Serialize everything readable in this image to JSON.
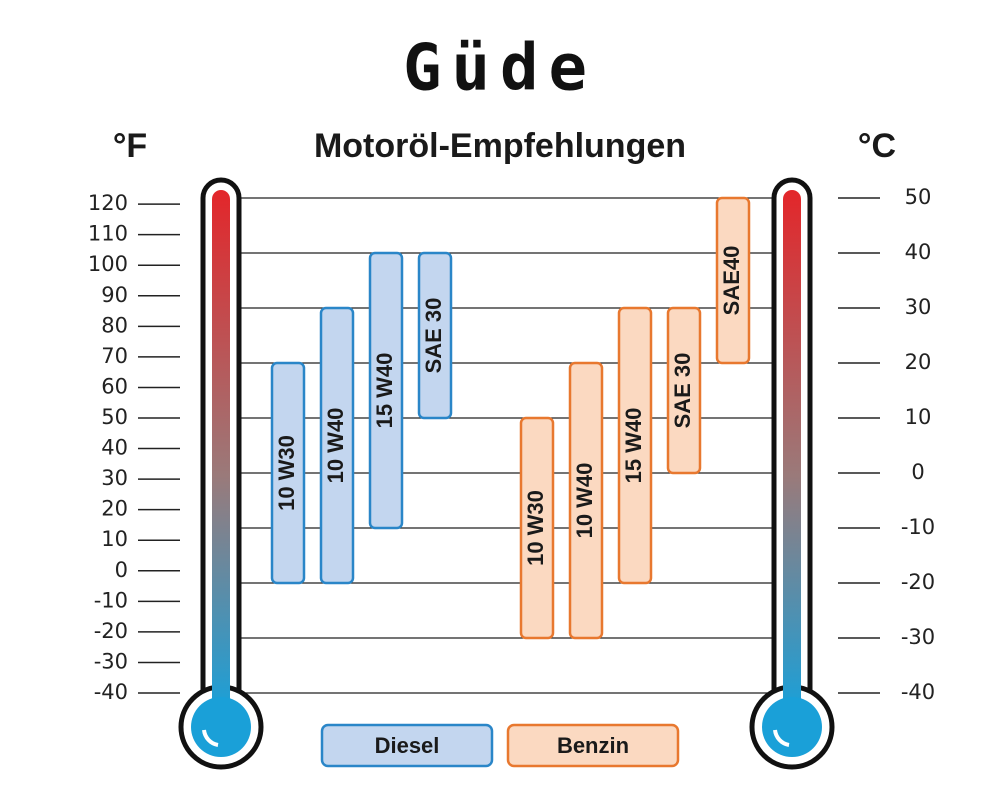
{
  "chart_data": {
    "type": "range-bar",
    "brand": "Güde",
    "title": "Motoröl-Empfehlungen",
    "left_unit": "°F",
    "right_unit": "°C",
    "ylim": [
      -40,
      50
    ],
    "yticks": [
      -40,
      -30,
      -20,
      -10,
      0,
      10,
      20,
      30,
      40,
      50
    ],
    "y2lim": [
      -40,
      122
    ],
    "y2ticks": [
      -40,
      -30,
      -20,
      -10,
      0,
      10,
      20,
      30,
      40,
      50,
      60,
      70,
      80,
      90,
      100,
      110,
      120
    ],
    "grid": true,
    "series": [
      {
        "name": "Diesel",
        "color": "#2a86c8",
        "fill": "#c3d6ef",
        "categories": [
          "10 W30",
          "10 W40",
          "15 W40",
          "SAE 30"
        ],
        "ranges": [
          [
            -20,
            20
          ],
          [
            -20,
            30
          ],
          [
            -10,
            40
          ],
          [
            10,
            40
          ]
        ]
      },
      {
        "name": "Benzin",
        "color": "#e8782f",
        "fill": "#fbd9c1",
        "categories": [
          "10 W30",
          "10 W40",
          "15 W40",
          "SAE 30",
          "SAE40"
        ],
        "ranges": [
          [
            -30,
            10
          ],
          [
            -30,
            20
          ],
          [
            -20,
            30
          ],
          [
            0,
            30
          ],
          [
            20,
            50
          ]
        ]
      }
    ]
  }
}
